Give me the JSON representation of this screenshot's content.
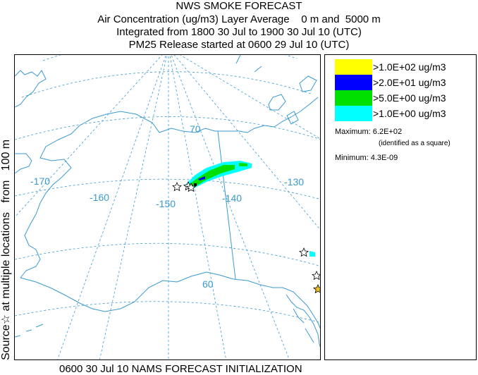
{
  "header": {
    "title": "NWS SMOKE FORECAST",
    "line2": "Air Concentration (ug/m3) Layer Average    0 m and  5000 m",
    "line3": "Integrated from 1800 30 Jul to 1900 30 Jul 10 (UTC)",
    "line4": "PM25 Release started at 0600 29 Jul 10 (UTC)"
  },
  "side_label": "Source☆ at multiple locations   from   100 m",
  "footer": "0600 30 Jul 10 NAMS FORECAST INITIALIZATION",
  "map": {
    "longitude_labels": [
      "-170",
      "-160",
      "-150",
      "-140",
      "-130"
    ],
    "latitude_labels": [
      "70",
      "60"
    ],
    "colors": {
      "coast": "#3a9ad0",
      "grid": "#3a9ad0",
      "level_1": "#ffff00",
      "level_2": "#0000ff",
      "level_3": "#00e000",
      "level_4": "#00ffff"
    }
  },
  "legend": {
    "entries": [
      {
        "label": ">1.0E+02 ug/m3",
        "color": "#ffff00"
      },
      {
        "label": ">2.0E+01 ug/m3",
        "color": "#0000ff"
      },
      {
        "label": ">5.0E+00 ug/m3",
        "color": "#00e000"
      },
      {
        "label": ">1.0E+00 ug/m3",
        "color": "#00ffff"
      }
    ],
    "maximum": "Maximum: 6.2E+02",
    "maximum_note": "(identified as a square)",
    "minimum": "Minimum: 4.3E-09"
  }
}
